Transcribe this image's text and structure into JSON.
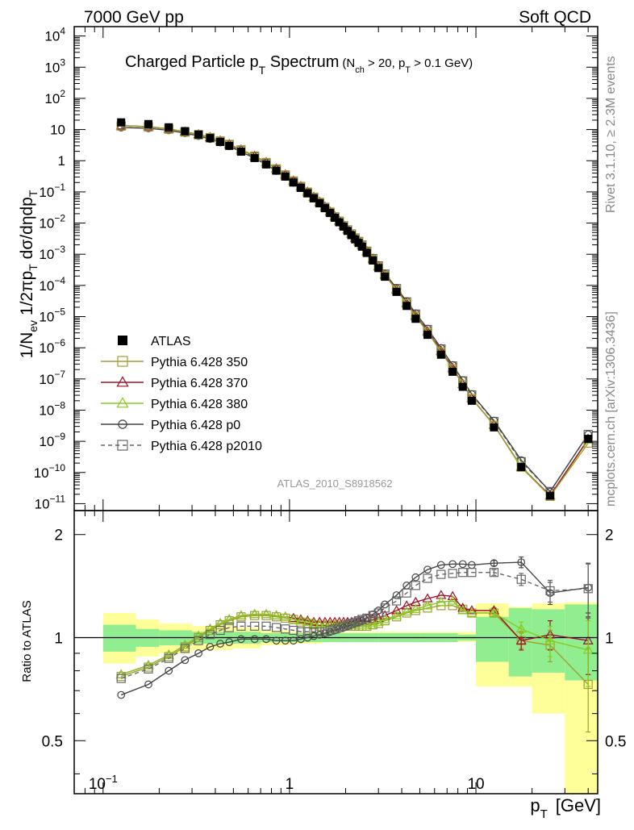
{
  "header": {
    "left": "7000 GeV pp",
    "right": "Soft QCD"
  },
  "side_labels": {
    "rivet": "Rivet 3.1.10, ≥ 2.3M events",
    "mcplots": "mcplots.cern.ch [arXiv:1306.3436]"
  },
  "chart_data": [
    {
      "type": "line",
      "panel": "main",
      "title": "Charged Particle pT Spectrum",
      "title_main": "Charged Particle p",
      "title_sub": "T",
      "title_tail": " Spectrum",
      "title_cut_text": "(N",
      "title_cut_sub1": "ch",
      "title_cut_mid": " > 20, p",
      "title_cut_sub2": "T",
      "title_cut_end": " > 0.1 GeV)",
      "ylabel": "1/Nev 1/2πpT dσ/dηdpT",
      "ylabel_parts": {
        "a": "1/N",
        "a_sub": "ev",
        "b": " 1/2πp",
        "b_sub": "T",
        "c": " dσ/dηdp",
        "c_sub": "T"
      },
      "log_x": true,
      "log_y": true,
      "xlim": [
        0.07,
        45
      ],
      "ylim": [
        6e-12,
        20000.0
      ],
      "watermark": "ATLAS_2010_S8918562",
      "ytick_labels": [
        {
          "v": 10000.0,
          "base": "10",
          "exp": "4"
        },
        {
          "v": 1000.0,
          "base": "10",
          "exp": "3"
        },
        {
          "v": 100.0,
          "base": "10",
          "exp": "2"
        },
        {
          "v": 10,
          "base": "10",
          "exp": ""
        },
        {
          "v": 1,
          "base": "1",
          "exp": ""
        },
        {
          "v": 0.1,
          "base": "10",
          "exp": "−1"
        },
        {
          "v": 0.01,
          "base": "10",
          "exp": "−2"
        },
        {
          "v": 0.001,
          "base": "10",
          "exp": "−3"
        },
        {
          "v": 0.0001,
          "base": "10",
          "exp": "−4"
        },
        {
          "v": 1e-05,
          "base": "10",
          "exp": "−5"
        },
        {
          "v": 1e-06,
          "base": "10",
          "exp": "−6"
        },
        {
          "v": 1e-07,
          "base": "10",
          "exp": "−7"
        },
        {
          "v": 1e-08,
          "base": "10",
          "exp": "−8"
        },
        {
          "v": 1e-09,
          "base": "10",
          "exp": "−9"
        },
        {
          "v": 1e-10,
          "base": "10",
          "exp": "−10"
        },
        {
          "v": 1e-11,
          "base": "10",
          "exp": "−11"
        }
      ],
      "x": [
        0.125,
        0.175,
        0.225,
        0.275,
        0.325,
        0.375,
        0.425,
        0.475,
        0.55,
        0.65,
        0.75,
        0.85,
        0.95,
        1.05,
        1.15,
        1.25,
        1.35,
        1.45,
        1.55,
        1.65,
        1.75,
        1.85,
        1.95,
        2.05,
        2.15,
        2.25,
        2.35,
        2.45,
        2.6,
        2.8,
        3.0,
        3.25,
        3.75,
        4.25,
        4.75,
        5.5,
        6.5,
        7.5,
        8.5,
        9.5,
        12.5,
        17.5,
        25.0,
        40.0
      ],
      "series": [
        {
          "name": "ATLAS",
          "color": "#000000",
          "marker": "filled-square",
          "values": [
            17,
            15,
            11.8,
            8.9,
            6.9,
            5.3,
            4.0,
            3.0,
            1.95,
            1.22,
            0.76,
            0.48,
            0.31,
            0.2,
            0.135,
            0.09,
            0.062,
            0.043,
            0.03,
            0.021,
            0.0148,
            0.0106,
            0.0077,
            0.0056,
            0.0041,
            0.003,
            0.0023,
            0.00175,
            0.0011,
            0.00063,
            0.00036,
            0.00019,
            6.2e-05,
            2.2e-05,
            8.5e-06,
            2.6e-06,
            6e-07,
            1.7e-07,
            5.6e-08,
            2e-08,
            2.8e-09,
            1.5e-10,
            1.8e-11,
            1.2e-09
          ]
        }
      ]
    },
    {
      "type": "line",
      "panel": "ratio",
      "ylabel": "Ratio to ATLAS",
      "log_x": true,
      "log_y": true,
      "xlim": [
        0.07,
        45
      ],
      "ylim": [
        0.35,
        2.35
      ],
      "xlabel": "pT [GeV]",
      "xlabel_main": "p",
      "xlabel_sub": "T",
      "xlabel_unit": "[GeV]",
      "xtick_labels": [
        {
          "v": 0.1,
          "base": "10",
          "exp": "−1"
        },
        {
          "v": 1,
          "base": "1",
          "exp": ""
        },
        {
          "v": 10,
          "base": "10",
          "exp": ""
        }
      ],
      "ytick_labels": [
        {
          "v": 2,
          "label": "2"
        },
        {
          "v": 1,
          "label": "1"
        },
        {
          "v": 0.5,
          "label": "0.5"
        }
      ],
      "reference_line": 1,
      "bands": {
        "bins": [
          [
            0.1,
            0.15
          ],
          [
            0.15,
            0.2
          ],
          [
            0.2,
            0.3
          ],
          [
            0.3,
            0.5
          ],
          [
            0.5,
            0.7
          ],
          [
            0.7,
            1.0
          ],
          [
            1.0,
            1.5
          ],
          [
            1.5,
            2.0
          ],
          [
            2.0,
            3.0
          ],
          [
            3.0,
            5.0
          ],
          [
            5.0,
            8.0
          ],
          [
            8.0,
            10.0
          ],
          [
            10.0,
            15.0
          ],
          [
            15.0,
            20.0
          ],
          [
            20.0,
            30.0
          ],
          [
            30.0,
            50.0
          ]
        ],
        "stat_lo": [
          0.91,
          0.94,
          0.95,
          0.96,
          0.96,
          0.97,
          0.97,
          0.97,
          0.97,
          0.97,
          0.97,
          0.98,
          0.85,
          0.77,
          0.79,
          0.75
        ],
        "stat_hi": [
          1.09,
          1.06,
          1.05,
          1.04,
          1.04,
          1.03,
          1.03,
          1.03,
          1.03,
          1.03,
          1.03,
          1.02,
          1.15,
          1.22,
          1.21,
          1.25
        ],
        "syst_lo": [
          0.84,
          0.88,
          0.9,
          0.92,
          0.93,
          0.95,
          0.96,
          0.97,
          0.97,
          0.97,
          0.97,
          0.97,
          0.72,
          0.72,
          0.6,
          0.35
        ],
        "syst_hi": [
          1.18,
          1.13,
          1.1,
          1.08,
          1.07,
          1.05,
          1.04,
          1.04,
          1.04,
          1.04,
          1.04,
          1.04,
          1.26,
          1.23,
          1.26,
          1.27
        ],
        "stat_color": "#90ee90",
        "syst_color": "#ffff99"
      },
      "x": [
        0.125,
        0.175,
        0.225,
        0.275,
        0.325,
        0.375,
        0.425,
        0.475,
        0.55,
        0.65,
        0.75,
        0.85,
        0.95,
        1.05,
        1.15,
        1.25,
        1.35,
        1.45,
        1.55,
        1.65,
        1.75,
        1.85,
        1.95,
        2.05,
        2.15,
        2.25,
        2.35,
        2.45,
        2.6,
        2.8,
        3.0,
        3.25,
        3.75,
        4.25,
        4.75,
        5.5,
        6.5,
        7.5,
        8.5,
        9.5,
        12.5,
        17.5,
        25.0,
        40.0
      ],
      "series": [
        {
          "name": "Pythia 6.428 350",
          "color": "#a0a030",
          "marker": "open-square",
          "dash": "",
          "values": [
            0.77,
            0.82,
            0.88,
            0.94,
            1.0,
            1.05,
            1.09,
            1.12,
            1.15,
            1.16,
            1.16,
            1.15,
            1.14,
            1.13,
            1.11,
            1.1,
            1.09,
            1.08,
            1.08,
            1.08,
            1.08,
            1.08,
            1.08,
            1.08,
            1.08,
            1.08,
            1.08,
            1.08,
            1.08,
            1.09,
            1.1,
            1.12,
            1.15,
            1.18,
            1.2,
            1.22,
            1.24,
            1.24,
            1.21,
            1.18,
            1.18,
            0.98,
            0.95,
            0.73
          ],
          "err": [
            0,
            0,
            0,
            0,
            0,
            0,
            0,
            0,
            0,
            0,
            0,
            0,
            0,
            0,
            0,
            0,
            0,
            0,
            0,
            0,
            0,
            0,
            0,
            0,
            0,
            0,
            0,
            0,
            0,
            0,
            0,
            0,
            0,
            0,
            0,
            0,
            0,
            0,
            0,
            0,
            0.02,
            0.05,
            0.1,
            0.2
          ]
        },
        {
          "name": "Pythia 6.428 370",
          "color": "#a01028",
          "marker": "open-triangle",
          "dash": "",
          "values": [
            0.78,
            0.83,
            0.89,
            0.95,
            1.01,
            1.06,
            1.1,
            1.13,
            1.16,
            1.17,
            1.17,
            1.16,
            1.15,
            1.14,
            1.13,
            1.12,
            1.11,
            1.11,
            1.11,
            1.11,
            1.11,
            1.11,
            1.11,
            1.11,
            1.11,
            1.11,
            1.12,
            1.12,
            1.12,
            1.13,
            1.14,
            1.16,
            1.2,
            1.24,
            1.27,
            1.3,
            1.33,
            1.32,
            1.22,
            1.2,
            1.2,
            0.98,
            1.02,
            0.98
          ],
          "err": [
            0,
            0,
            0,
            0,
            0,
            0,
            0,
            0,
            0,
            0,
            0,
            0,
            0,
            0,
            0,
            0,
            0,
            0,
            0,
            0,
            0,
            0,
            0,
            0,
            0,
            0,
            0,
            0,
            0,
            0,
            0,
            0,
            0,
            0,
            0,
            0,
            0,
            0,
            0,
            0,
            0.02,
            0.06,
            0.1,
            0.2
          ]
        },
        {
          "name": "Pythia 6.428 380",
          "color": "#88cc22",
          "marker": "open-triangle",
          "dash": "",
          "values": [
            0.78,
            0.83,
            0.89,
            0.95,
            1.01,
            1.06,
            1.1,
            1.13,
            1.16,
            1.17,
            1.17,
            1.16,
            1.15,
            1.13,
            1.12,
            1.11,
            1.1,
            1.09,
            1.09,
            1.09,
            1.09,
            1.09,
            1.09,
            1.09,
            1.09,
            1.09,
            1.09,
            1.09,
            1.09,
            1.1,
            1.11,
            1.13,
            1.16,
            1.19,
            1.21,
            1.24,
            1.27,
            1.28,
            1.2,
            1.18,
            1.18,
            1.06,
            0.98,
            0.92
          ],
          "err": [
            0,
            0,
            0,
            0,
            0,
            0,
            0,
            0,
            0,
            0,
            0,
            0,
            0,
            0,
            0,
            0,
            0,
            0,
            0,
            0,
            0,
            0,
            0,
            0,
            0,
            0,
            0,
            0,
            0,
            0,
            0,
            0,
            0,
            0,
            0,
            0,
            0,
            0,
            0,
            0,
            0.02,
            0.05,
            0.1,
            0.2
          ]
        },
        {
          "name": "Pythia 6.428 p0",
          "color": "#444444",
          "marker": "open-circle",
          "dash": "",
          "values": [
            0.68,
            0.73,
            0.8,
            0.86,
            0.9,
            0.94,
            0.96,
            0.97,
            0.99,
            0.99,
            0.99,
            0.98,
            0.98,
            0.98,
            0.99,
            1.0,
            1.01,
            1.02,
            1.03,
            1.04,
            1.05,
            1.06,
            1.07,
            1.08,
            1.09,
            1.1,
            1.11,
            1.12,
            1.14,
            1.17,
            1.2,
            1.25,
            1.33,
            1.42,
            1.5,
            1.58,
            1.63,
            1.64,
            1.64,
            1.63,
            1.65,
            1.66,
            1.35,
            1.4
          ],
          "err": [
            0,
            0,
            0,
            0,
            0,
            0,
            0,
            0,
            0,
            0,
            0,
            0,
            0,
            0,
            0,
            0,
            0,
            0,
            0,
            0,
            0,
            0,
            0,
            0,
            0,
            0,
            0,
            0,
            0,
            0,
            0,
            0,
            0,
            0,
            0,
            0,
            0,
            0,
            0,
            0,
            0.03,
            0.06,
            0.1,
            0.25
          ]
        },
        {
          "name": "Pythia 6.428 p2010",
          "color": "#666666",
          "marker": "open-square",
          "dash": "5,4",
          "values": [
            0.76,
            0.81,
            0.87,
            0.93,
            0.98,
            1.02,
            1.05,
            1.07,
            1.08,
            1.08,
            1.08,
            1.07,
            1.06,
            1.05,
            1.04,
            1.04,
            1.04,
            1.04,
            1.04,
            1.05,
            1.06,
            1.07,
            1.08,
            1.09,
            1.1,
            1.11,
            1.12,
            1.13,
            1.14,
            1.16,
            1.18,
            1.22,
            1.28,
            1.35,
            1.42,
            1.49,
            1.53,
            1.54,
            1.55,
            1.55,
            1.55,
            1.48,
            1.37,
            1.39
          ],
          "err": [
            0,
            0,
            0,
            0,
            0,
            0,
            0,
            0,
            0,
            0,
            0,
            0,
            0,
            0,
            0,
            0,
            0,
            0,
            0,
            0,
            0,
            0,
            0,
            0,
            0,
            0,
            0,
            0,
            0,
            0,
            0,
            0,
            0,
            0,
            0,
            0,
            0,
            0,
            0,
            0,
            0.03,
            0.06,
            0.1,
            0.25
          ]
        }
      ]
    }
  ],
  "legend": {
    "placement": "bottom-left",
    "entries": [
      {
        "label": "ATLAS",
        "color": "#000000",
        "marker": "filled-square",
        "dash": "",
        "line": false
      },
      {
        "label": "Pythia 6.428 350",
        "color": "#a0a030",
        "marker": "open-square",
        "dash": "",
        "line": true
      },
      {
        "label": "Pythia 6.428 370",
        "color": "#a01028",
        "marker": "open-triangle",
        "dash": "",
        "line": true
      },
      {
        "label": "Pythia 6.428 380",
        "color": "#88cc22",
        "marker": "open-triangle",
        "dash": "",
        "line": true
      },
      {
        "label": "Pythia 6.428 p0",
        "color": "#444444",
        "marker": "open-circle",
        "dash": "",
        "line": true
      },
      {
        "label": "Pythia 6.428 p2010",
        "color": "#666666",
        "marker": "open-square",
        "dash": "5,4",
        "line": true
      }
    ]
  }
}
